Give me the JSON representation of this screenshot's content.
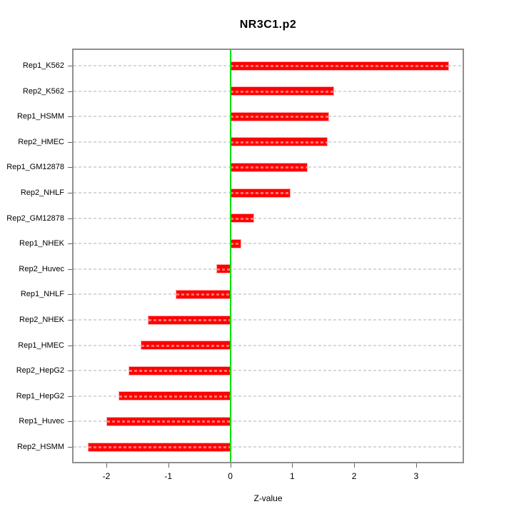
{
  "chart_data": {
    "type": "bar",
    "orientation": "horizontal",
    "title": "NR3C1.p2",
    "xlabel": "Z-value",
    "ylabel": "",
    "categories": [
      "Rep1_K562",
      "Rep2_K562",
      "Rep1_HSMM",
      "Rep2_HMEC",
      "Rep1_GM12878",
      "Rep2_NHLF",
      "Rep2_GM12878",
      "Rep1_NHEK",
      "Rep2_Huvec",
      "Rep1_NHLF",
      "Rep2_NHEK",
      "Rep1_HMEC",
      "Rep2_HepG2",
      "Rep1_HepG2",
      "Rep1_Huvec",
      "Rep2_HSMM"
    ],
    "values": [
      3.52,
      1.67,
      1.58,
      1.56,
      1.24,
      0.96,
      0.37,
      0.17,
      -0.21,
      -0.87,
      -1.32,
      -1.44,
      -1.63,
      -1.79,
      -1.99,
      -2.29
    ],
    "xticks": [
      "-2",
      "-1",
      "0",
      "1",
      "2",
      "3"
    ],
    "xtick_values": [
      -2,
      -1,
      0,
      1,
      2,
      3
    ],
    "xlim": [
      -2.53,
      3.75
    ],
    "zero_line_at": 0,
    "grid": true,
    "legend": "none",
    "colors": {
      "bar_fill": "#FF0000",
      "bar_border": "#FFAAAA",
      "bar_dash_overlay": "rgba(255,255,255,0.45)",
      "zero_line": "#00E300",
      "gridline": "#D8D8D8",
      "frame": "#8F8F8F",
      "tick": "#666666",
      "text": "#000000",
      "background": "#FFFFFF"
    }
  }
}
